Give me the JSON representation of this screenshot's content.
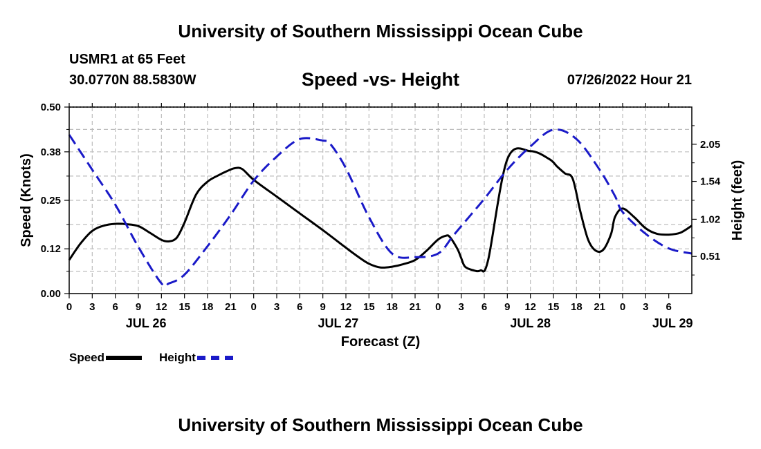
{
  "header": {
    "title": "University of Southern Mississippi Ocean Cube",
    "station": "USMR1 at 65 Feet",
    "coords": "30.0770N  88.5830W",
    "subtitle": "Speed -vs- Height",
    "datetime": "07/26/2022 Hour 21"
  },
  "footer": {
    "title": "University of Southern Mississippi Ocean Cube"
  },
  "legend": {
    "speed_label": "Speed",
    "height_label": "Height"
  },
  "colors": {
    "speed": "#000000",
    "height": "#1a1ac8",
    "grid": "#bdbdbd"
  },
  "chart_data": {
    "type": "line",
    "title": "Speed -vs- Height",
    "xlabel": "Forecast (Z)",
    "ylabel": "Speed (Knots)",
    "y2label": "Height (feet)",
    "x_hours_range": [
      0,
      81
    ],
    "x_tick_labels": [
      "0",
      "3",
      "6",
      "9",
      "12",
      "15",
      "18",
      "21",
      "0",
      "3",
      "6",
      "9",
      "12",
      "15",
      "18",
      "21",
      "0",
      "3",
      "6",
      "9",
      "12",
      "15",
      "18",
      "21",
      "0",
      "3",
      "6"
    ],
    "date_labels": [
      {
        "label": "JUL 26",
        "hour": 10
      },
      {
        "label": "JUL 27",
        "hour": 35
      },
      {
        "label": "JUL 28",
        "hour": 60
      },
      {
        "label": "JUL 29",
        "hour": 78.5
      }
    ],
    "ylim": [
      0,
      0.5
    ],
    "y_ticks": [
      0.0,
      0.12,
      0.25,
      0.38,
      0.5
    ],
    "y_tick_labels": [
      "0.00",
      "0.12",
      "0.25",
      "0.38",
      "0.50"
    ],
    "y2lim": [
      0,
      2.56
    ],
    "y2_ticks": [
      0.51,
      1.02,
      1.54,
      2.05
    ],
    "y2_tick_labels": [
      "0.51",
      "1.02",
      "1.54",
      "2.05"
    ],
    "grid": true,
    "legend_position": "bottom-left",
    "series": [
      {
        "name": "Speed",
        "axis": "left",
        "style": "solid",
        "x": [
          0,
          1.5,
          3,
          4.5,
          6,
          7.5,
          9,
          10.5,
          12,
          13,
          14,
          15,
          16.5,
          18,
          19.5,
          20.5,
          21.5,
          22.5,
          24,
          27,
          30,
          33,
          36,
          37.5,
          39,
          40.5,
          42,
          43.5,
          45,
          46.5,
          48,
          49,
          49.5,
          50.5,
          51,
          51.5,
          52.5,
          53.5,
          54.5,
          57,
          60,
          62.5,
          63.5,
          64.5,
          65.5,
          66.5,
          67.5,
          68.5,
          69.5,
          70.5,
          71,
          72,
          73.5,
          75,
          76.5,
          78,
          79.5,
          81
        ],
        "y": [
          0.09,
          0.135,
          0.168,
          0.182,
          0.187,
          0.186,
          0.181,
          0.163,
          0.144,
          0.14,
          0.15,
          0.19,
          0.265,
          0.3,
          0.318,
          0.328,
          0.336,
          0.334,
          0.305,
          0.26,
          0.215,
          0.17,
          0.123,
          0.1,
          0.08,
          0.07,
          0.072,
          0.079,
          0.09,
          0.115,
          0.145,
          0.155,
          0.152,
          0.12,
          0.095,
          0.072,
          0.063,
          0.062,
          0.09,
          0.36,
          0.382,
          0.36,
          0.34,
          0.322,
          0.308,
          0.22,
          0.145,
          0.115,
          0.118,
          0.16,
          0.205,
          0.228,
          0.205,
          0.175,
          0.16,
          0.158,
          0.163,
          0.182
        ]
      },
      {
        "name": "Height",
        "axis": "right",
        "style": "dashed",
        "x": [
          0,
          3,
          6,
          9,
          12,
          13,
          15,
          18,
          21,
          24,
          27,
          30,
          33,
          34,
          36,
          39,
          42,
          45,
          48,
          50,
          52,
          54,
          57,
          60,
          63,
          66,
          69,
          71,
          72,
          75,
          78,
          81
        ],
        "y": [
          2.18,
          1.7,
          1.22,
          0.64,
          0.14,
          0.14,
          0.26,
          0.65,
          1.08,
          1.55,
          1.88,
          2.12,
          2.1,
          2.05,
          1.72,
          1.05,
          0.55,
          0.5,
          0.55,
          0.8,
          1.05,
          1.3,
          1.7,
          2.02,
          2.25,
          2.12,
          1.7,
          1.34,
          1.12,
          0.82,
          0.62,
          0.55
        ]
      }
    ]
  }
}
